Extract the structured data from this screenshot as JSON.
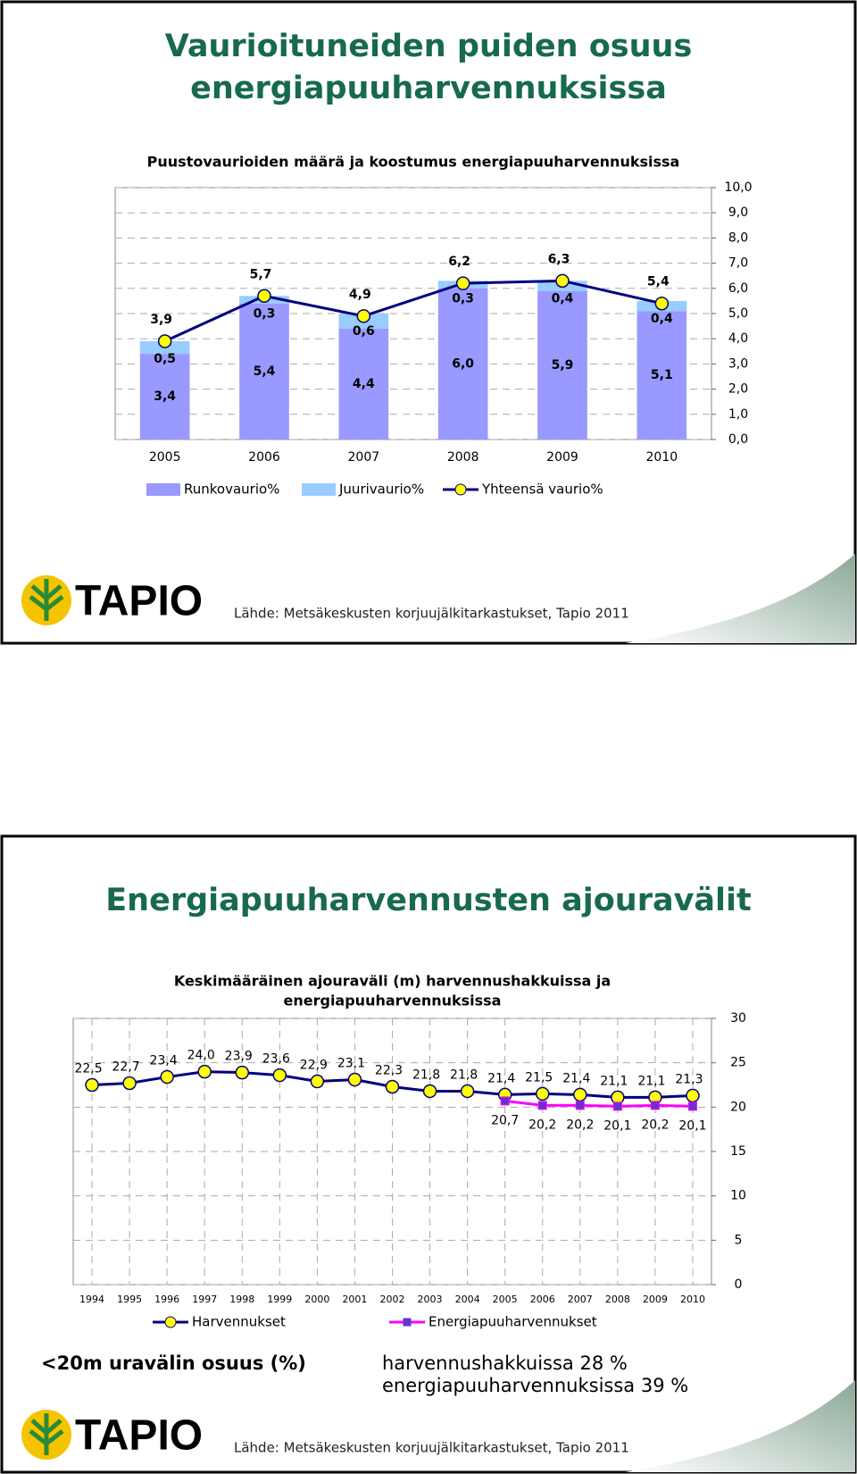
{
  "slides": [
    {
      "title": [
        "Vaurioituneiden puiden osuus",
        "energiapuuharvennuksissa"
      ],
      "logo": "TAPIO",
      "source": "Lähde: Metsäkeskusten korjuujälkitarkastukset, Tapio 2011"
    },
    {
      "title": [
        "Energiapuuharvennusten ajouravälit"
      ],
      "logo": "TAPIO",
      "source": "Lähde: Metsäkeskusten korjuujälkitarkastukset, Tapio 2011",
      "notes": {
        "heading": "<20m uravälin osuus (%)",
        "lines": [
          "harvennushakkuissa 28 %",
          "energiapuuharvennuksissa 39 %"
        ]
      }
    }
  ],
  "chart_data": [
    {
      "type": "bar",
      "stacked": true,
      "title": [
        "Puustovaurioiden määrä ja koostumus energiapuuharvennuksissa"
      ],
      "categories": [
        "2005",
        "2006",
        "2007",
        "2008",
        "2009",
        "2010"
      ],
      "series": [
        {
          "name": "Runkovaurio%",
          "type": "bar",
          "color": "#9999ff",
          "values": [
            3.4,
            5.4,
            4.4,
            6.0,
            5.9,
            5.1
          ],
          "value_labels": [
            "3,4",
            "5,4",
            "4,4",
            "6,0",
            "5,9",
            "5,1"
          ]
        },
        {
          "name": "Juurivaurio%",
          "type": "bar",
          "color": "#99ccff",
          "values": [
            0.5,
            0.3,
            0.6,
            0.3,
            0.4,
            0.4
          ],
          "value_labels": [
            "0,5",
            "0,3",
            "0,6",
            "0,3",
            "0,4",
            "0,4"
          ]
        },
        {
          "name": "Yhteensä vaurio%",
          "type": "line",
          "color": "#000080",
          "marker_color": "#ffff00",
          "values": [
            3.9,
            5.7,
            4.9,
            6.2,
            6.3,
            5.4
          ],
          "value_labels": [
            "3,9",
            "5,7",
            "4,9",
            "6,2",
            "6,3",
            "5,4"
          ]
        }
      ],
      "ylim": [
        0,
        10
      ],
      "yticks": [
        {
          "value": 0,
          "label": "0,0"
        },
        {
          "value": 1,
          "label": "1,0"
        },
        {
          "value": 2,
          "label": "2,0"
        },
        {
          "value": 3,
          "label": "3,0"
        },
        {
          "value": 4,
          "label": "4,0"
        },
        {
          "value": 5,
          "label": "5,0"
        },
        {
          "value": 6,
          "label": "6,0"
        },
        {
          "value": 7,
          "label": "7,0"
        },
        {
          "value": 8,
          "label": "8,0"
        },
        {
          "value": 9,
          "label": "9,0"
        },
        {
          "value": 10,
          "label": "10,0"
        }
      ],
      "grid": true,
      "axis_side": "right",
      "legend": "bottom"
    },
    {
      "type": "line",
      "title": [
        "Keskimääräinen ajouraväli (m) harvennushakkuissa ja",
        "energiapuuharvennuksissa"
      ],
      "categories": [
        "1994",
        "1995",
        "1996",
        "1997",
        "1998",
        "1999",
        "2000",
        "2001",
        "2002",
        "2003",
        "2004",
        "2005",
        "2006",
        "2007",
        "2008",
        "2009",
        "2010"
      ],
      "series": [
        {
          "name": "Harvennukset",
          "color": "#000080",
          "marker": "circle",
          "marker_color": "#ffff00",
          "values": [
            22.5,
            22.7,
            23.4,
            24.0,
            23.9,
            23.6,
            22.9,
            23.1,
            22.3,
            21.8,
            21.8,
            21.4,
            21.5,
            21.4,
            21.1,
            21.1,
            21.3
          ],
          "value_labels": [
            "22,5",
            "22,7",
            "23,4",
            "24,0",
            "23,9",
            "23,6",
            "22,9",
            "23,1",
            "22,3",
            "21,8",
            "21,8",
            "21,4",
            "21,5",
            "21,4",
            "21,1",
            "21,1",
            "21,3"
          ]
        },
        {
          "name": "Energiapuuharvennukset",
          "color": "#ff00ff",
          "marker": "square",
          "marker_color": "#6633cc",
          "values": [
            null,
            null,
            null,
            null,
            null,
            null,
            null,
            null,
            null,
            null,
            null,
            20.7,
            20.2,
            20.2,
            20.1,
            20.2,
            20.1
          ],
          "value_labels": [
            null,
            null,
            null,
            null,
            null,
            null,
            null,
            null,
            null,
            null,
            null,
            "20,7",
            "20,2",
            "20,2",
            "20,1",
            "20,2",
            "20,1"
          ]
        }
      ],
      "ylim": [
        0,
        30
      ],
      "yticks": [
        0,
        5,
        10,
        15,
        20,
        25,
        30
      ],
      "grid": true,
      "axis_side": "right",
      "legend": "bottom"
    }
  ]
}
